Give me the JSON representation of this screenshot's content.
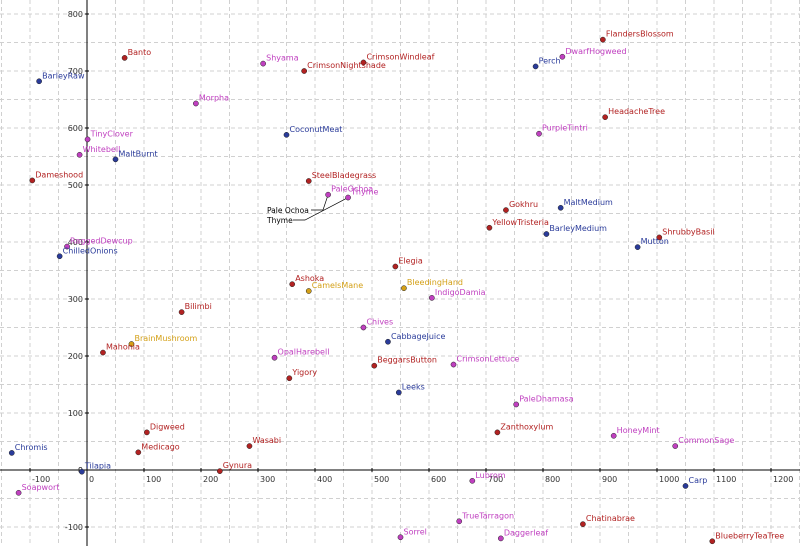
{
  "chart_data": {
    "type": "scatter",
    "xlim": [
      -150,
      1250
    ],
    "ylim": [
      -130,
      820
    ],
    "x_ticks": [
      -100,
      0,
      100,
      200,
      300,
      400,
      500,
      600,
      700,
      800,
      900,
      1000,
      1100,
      1200
    ],
    "y_ticks": [
      -100,
      0,
      100,
      200,
      300,
      400,
      500,
      600,
      700,
      800
    ],
    "grid": true,
    "colors": {
      "red": "#b22222",
      "magenta": "#c040c0",
      "blue": "#2a3b9a",
      "orange": "#d4a017"
    },
    "points": [
      {
        "label": "FlandersBlossom",
        "x": 905,
        "y": 755,
        "color": "red"
      },
      {
        "label": "DwarfHogweed",
        "x": 834,
        "y": 725,
        "color": "magenta"
      },
      {
        "label": "Perch",
        "x": 787,
        "y": 708,
        "color": "blue"
      },
      {
        "label": "CrimsonWindleaf",
        "x": 485,
        "y": 715,
        "color": "red"
      },
      {
        "label": "Shyama",
        "x": 309,
        "y": 713,
        "color": "magenta"
      },
      {
        "label": "CrimsonNightshade",
        "x": 381,
        "y": 700,
        "color": "red"
      },
      {
        "label": "Banto",
        "x": 66,
        "y": 723,
        "color": "red"
      },
      {
        "label": "BarleyRaw",
        "x": -84,
        "y": 682,
        "color": "blue"
      },
      {
        "label": "Morpha",
        "x": 191,
        "y": 643,
        "color": "magenta"
      },
      {
        "label": "HeadacheTree",
        "x": 909,
        "y": 619,
        "color": "red"
      },
      {
        "label": "PurpleTintri",
        "x": 793,
        "y": 590,
        "color": "magenta"
      },
      {
        "label": "CoconutMeat",
        "x": 350,
        "y": 588,
        "color": "blue"
      },
      {
        "label": "TinyClover",
        "x": 1,
        "y": 580,
        "color": "magenta"
      },
      {
        "label": "Whitebell",
        "x": -13,
        "y": 553,
        "color": "magenta"
      },
      {
        "label": "MaltBurnt",
        "x": 50,
        "y": 545,
        "color": "blue"
      },
      {
        "label": "Dameshood",
        "x": -96,
        "y": 508,
        "color": "red"
      },
      {
        "label": "SteelBladegrass",
        "x": 389,
        "y": 507,
        "color": "red"
      },
      {
        "label": "PaleOchoa",
        "x": 423,
        "y": 483,
        "color": "magenta"
      },
      {
        "label": "Thyme",
        "x": 458,
        "y": 478,
        "color": "magenta"
      },
      {
        "label": "Gokhru",
        "x": 735,
        "y": 456,
        "color": "red"
      },
      {
        "label": "MaltMedium",
        "x": 831,
        "y": 460,
        "color": "blue"
      },
      {
        "label": "YellowTristeria",
        "x": 706,
        "y": 425,
        "color": "red"
      },
      {
        "label": "BarleyMedium",
        "x": 806,
        "y": 414,
        "color": "blue"
      },
      {
        "label": "ShrubbyBasil",
        "x": 1004,
        "y": 408,
        "color": "red"
      },
      {
        "label": "Mutton",
        "x": 966,
        "y": 391,
        "color": "blue"
      },
      {
        "label": "RaggedDewcup",
        "x": -35,
        "y": 392,
        "color": "magenta"
      },
      {
        "label": "ChilledOnions",
        "x": -48,
        "y": 375,
        "color": "blue"
      },
      {
        "label": "Elegia",
        "x": 541,
        "y": 357,
        "color": "red"
      },
      {
        "label": "Ashoka",
        "x": 360,
        "y": 326,
        "color": "red"
      },
      {
        "label": "CamelsMane",
        "x": 389,
        "y": 314,
        "color": "orange"
      },
      {
        "label": "BleedingHand",
        "x": 556,
        "y": 319,
        "color": "orange"
      },
      {
        "label": "IndigoDamia",
        "x": 605,
        "y": 302,
        "color": "magenta"
      },
      {
        "label": "Bilimbi",
        "x": 166,
        "y": 277,
        "color": "red"
      },
      {
        "label": "Chives",
        "x": 485,
        "y": 250,
        "color": "magenta"
      },
      {
        "label": "CabbageJuice",
        "x": 528,
        "y": 225,
        "color": "blue"
      },
      {
        "label": "BrainMushroom",
        "x": 78,
        "y": 221,
        "color": "orange"
      },
      {
        "label": "Mahonia",
        "x": 28,
        "y": 206,
        "color": "red"
      },
      {
        "label": "OpalHarebell",
        "x": 329,
        "y": 197,
        "color": "magenta"
      },
      {
        "label": "BeggarsButton",
        "x": 504,
        "y": 183,
        "color": "red"
      },
      {
        "label": "CrimsonLettuce",
        "x": 643,
        "y": 185,
        "color": "magenta"
      },
      {
        "label": "Yigory",
        "x": 355,
        "y": 161,
        "color": "red"
      },
      {
        "label": "Leeks",
        "x": 547,
        "y": 136,
        "color": "blue"
      },
      {
        "label": "PaleDhamasa",
        "x": 753,
        "y": 115,
        "color": "magenta"
      },
      {
        "label": "Digweed",
        "x": 105,
        "y": 66,
        "color": "red"
      },
      {
        "label": "Zanthoxylum",
        "x": 720,
        "y": 66,
        "color": "red"
      },
      {
        "label": "HoneyMint",
        "x": 924,
        "y": 60,
        "color": "magenta"
      },
      {
        "label": "CommonSage",
        "x": 1032,
        "y": 42,
        "color": "magenta"
      },
      {
        "label": "Wasabi",
        "x": 285,
        "y": 42,
        "color": "red"
      },
      {
        "label": "Medicago",
        "x": 90,
        "y": 31,
        "color": "red"
      },
      {
        "label": "Chromis",
        "x": -132,
        "y": 30,
        "color": "blue"
      },
      {
        "label": "Gynura",
        "x": 233,
        "y": -2,
        "color": "red"
      },
      {
        "label": "Tilapia",
        "x": -9,
        "y": -3,
        "color": "blue"
      },
      {
        "label": "Lubrom",
        "x": 676,
        "y": -19,
        "color": "magenta"
      },
      {
        "label": "Carp",
        "x": 1050,
        "y": -28,
        "color": "blue"
      },
      {
        "label": "Soapwort",
        "x": -120,
        "y": -40,
        "color": "magenta"
      },
      {
        "label": "TrueTarragon",
        "x": 653,
        "y": -90,
        "color": "magenta"
      },
      {
        "label": "Chatinabrae",
        "x": 870,
        "y": -95,
        "color": "red"
      },
      {
        "label": "Sorrel",
        "x": 550,
        "y": -118,
        "color": "magenta"
      },
      {
        "label": "Daggerleaf",
        "x": 726,
        "y": -120,
        "color": "magenta"
      },
      {
        "label": "BlueberryTeaTree",
        "x": 1097,
        "y": -125,
        "color": "red"
      }
    ],
    "annotations": [
      {
        "text": "Pale Ochoa",
        "target": "PaleOchoa"
      },
      {
        "text": "Thyme",
        "target": "Thyme"
      }
    ]
  }
}
